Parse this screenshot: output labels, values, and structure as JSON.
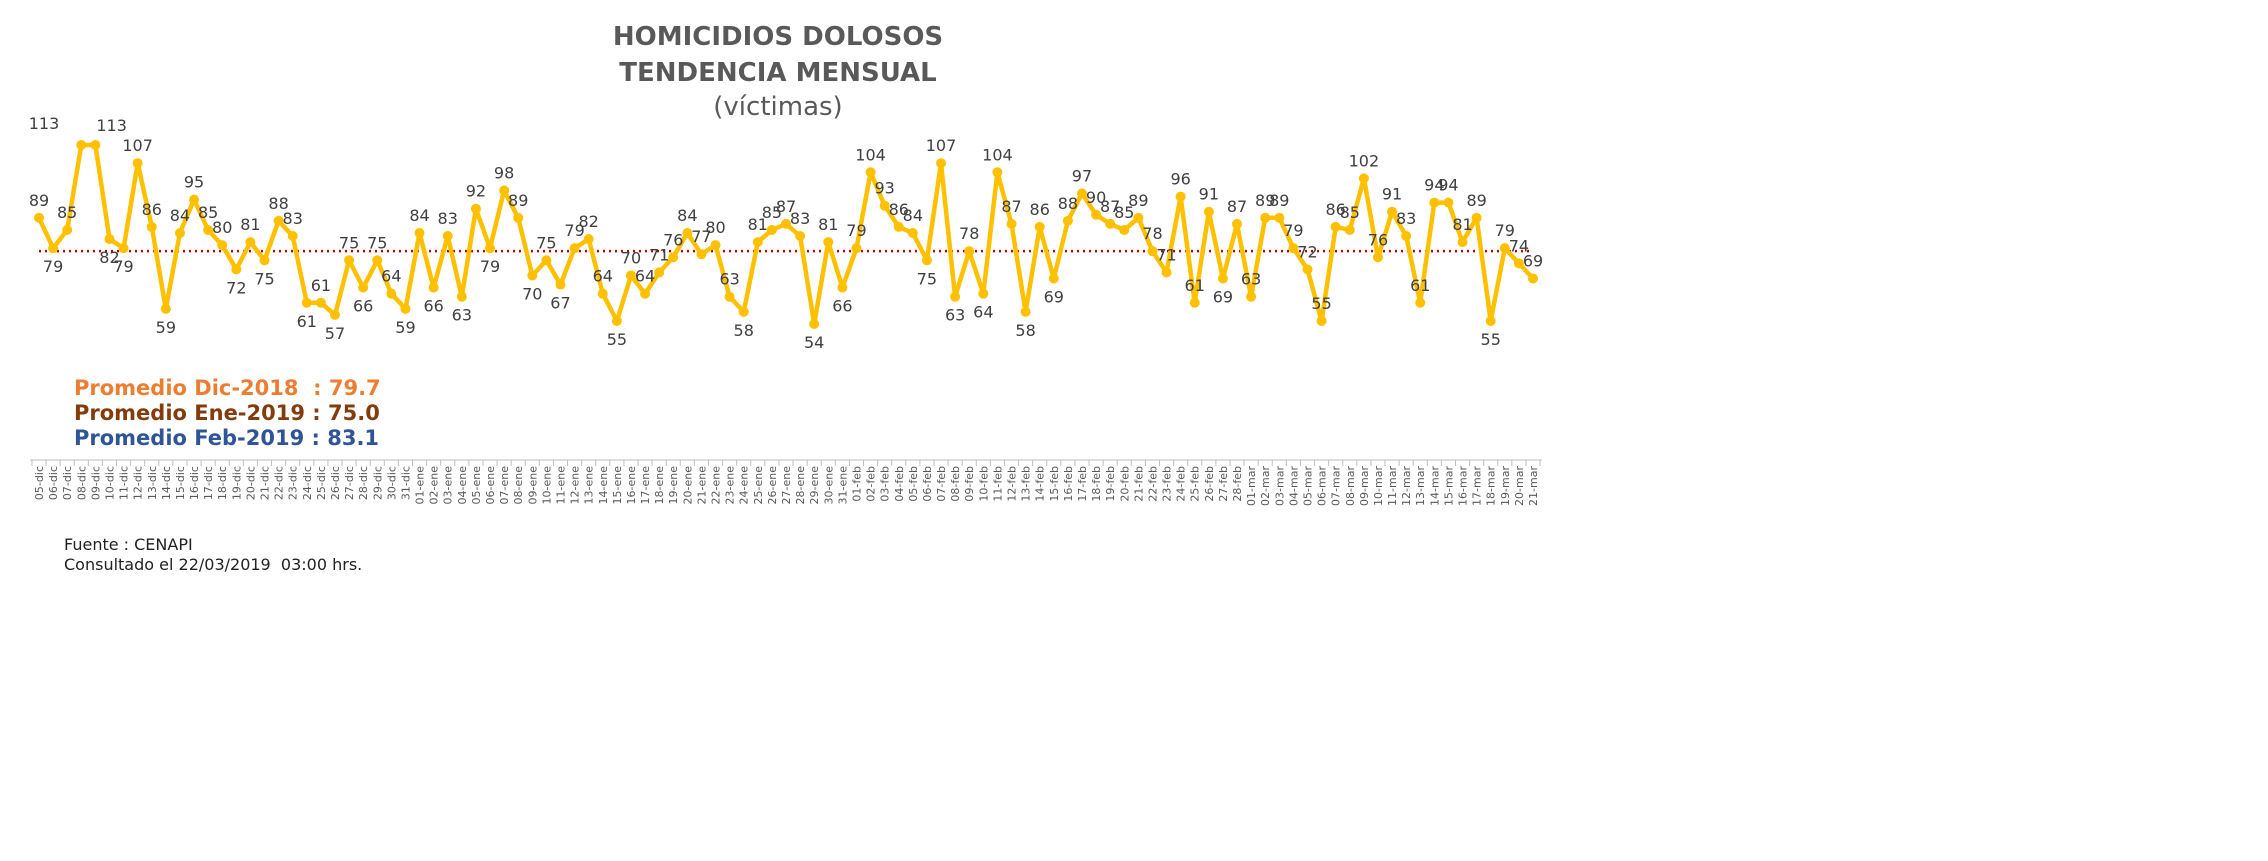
{
  "title_line1": "HOMICIDIOS DOLOSOS",
  "title_line2": "TENDENCIA MENSUAL",
  "title_line3": "(víctimas)",
  "averages": [
    {
      "label": "Promedio Dic-2018  : 79.7",
      "color": "#ED7D31"
    },
    {
      "label": "Promedio Ene-2019 : 75.0",
      "color": "#843C0C"
    },
    {
      "label": "Promedio Feb-2019 : 83.1",
      "color": "#2F5597"
    }
  ],
  "source_line1": "Fuente : CENAPI",
  "source_line2": "Consultado el 22/03/2019  03:00 hrs.",
  "colors": {
    "line": "#FFC000",
    "reference": "#C00000",
    "text": "#404040"
  },
  "chart_data": {
    "type": "line",
    "title": "HOMICIDIOS DOLOSOS TENDENCIA MENSUAL",
    "subtitle": "(víctimas)",
    "categories": [
      "05-dic",
      "06-dic",
      "07-dic",
      "08-dic",
      "09-dic",
      "10-dic",
      "11-dic",
      "12-dic",
      "13-dic",
      "14-dic",
      "15-dic",
      "16-dic",
      "17-dic",
      "18-dic",
      "19-dic",
      "20-dic",
      "21-dic",
      "22-dic",
      "23-dic",
      "24-dic",
      "25-dic",
      "26-dic",
      "27-dic",
      "28-dic",
      "29-dic",
      "30-dic",
      "31-dic",
      "01-ene",
      "02-ene",
      "03-ene",
      "04-ene",
      "05-ene",
      "06-ene",
      "07-ene",
      "08-ene",
      "09-ene",
      "10-ene",
      "11-ene",
      "12-ene",
      "13-ene",
      "14-ene",
      "15-ene",
      "16-ene",
      "17-ene",
      "18-ene",
      "19-ene",
      "20-ene",
      "21-ene",
      "22-ene",
      "23-ene",
      "24-ene",
      "25-ene",
      "26-ene",
      "27-ene",
      "28-ene",
      "29-ene",
      "30-ene",
      "31-ene",
      "01-feb",
      "02-feb",
      "03-feb",
      "04-feb",
      "05-feb",
      "06-feb",
      "07-feb",
      "08-feb",
      "09-feb",
      "10-feb",
      "11-feb",
      "12-feb",
      "13-feb",
      "14-feb",
      "15-feb",
      "16-feb",
      "17-feb",
      "18-feb",
      "19-feb",
      "20-feb",
      "21-feb",
      "22-feb",
      "23-feb",
      "24-feb",
      "25-feb",
      "26-feb",
      "27-feb",
      "28-feb",
      "01-mar",
      "02-mar",
      "03-mar",
      "04-mar",
      "05-mar",
      "06-mar",
      "07-mar",
      "08-mar",
      "09-mar",
      "10-mar",
      "11-mar",
      "12-mar",
      "13-mar",
      "14-mar",
      "15-mar",
      "16-mar",
      "17-mar",
      "18-mar",
      "19-mar",
      "20-mar",
      "21-mar"
    ],
    "values": [
      89,
      79,
      85,
      113,
      113,
      82,
      79,
      107,
      86,
      59,
      84,
      95,
      85,
      80,
      72,
      81,
      75,
      88,
      83,
      61,
      61,
      57,
      75,
      66,
      75,
      64,
      59,
      84,
      66,
      83,
      63,
      92,
      79,
      98,
      89,
      70,
      75,
      67,
      79,
      82,
      64,
      55,
      70,
      64,
      71,
      76,
      84,
      77,
      80,
      63,
      58,
      81,
      85,
      87,
      83,
      54,
      81,
      66,
      79,
      104,
      93,
      86,
      84,
      75,
      107,
      63,
      78,
      64,
      104,
      87,
      58,
      86,
      69,
      88,
      97,
      90,
      87,
      85,
      89,
      78,
      71,
      96,
      61,
      91,
      69,
      87,
      63,
      89,
      89,
      79,
      72,
      55,
      86,
      85,
      102,
      76,
      91,
      83,
      61,
      94,
      94,
      81,
      89,
      55,
      79,
      74,
      69
    ],
    "data_labels": [
      "89",
      "79",
      "85",
      "113",
      "113",
      "82",
      "79",
      "107",
      "86",
      "59",
      "84",
      "95",
      "85",
      "80",
      "72",
      "81",
      "75",
      "88",
      "83",
      "61",
      "61",
      "57",
      "75",
      "66",
      "75",
      "64",
      "59",
      "84",
      "66",
      "83",
      "63",
      "92",
      "79",
      "98",
      "89",
      "70",
      "75",
      "67",
      "79",
      "82",
      "64",
      "55",
      "70",
      "64",
      "71",
      "76",
      "84",
      "77",
      "80",
      "63",
      "58",
      "81",
      "85",
      "87",
      "83",
      "54",
      "81",
      "66",
      "79",
      "104",
      "93",
      "86",
      "84",
      "75",
      "107",
      "63",
      "78",
      "64",
      "104",
      "87",
      "58",
      "86",
      "69",
      "88",
      "97",
      "90",
      "87",
      "85",
      "89",
      "78",
      "71",
      "96",
      "61",
      "91",
      "69",
      "87",
      "63",
      "89",
      "89",
      "79",
      "72",
      "55",
      "86",
      "85",
      "102",
      "76",
      "91",
      "83",
      "61",
      "94",
      "94",
      "81",
      "89",
      "55",
      "79",
      "74",
      "69"
    ],
    "label_placement": [
      "above",
      "below",
      "above",
      "left",
      "right",
      "below",
      "below",
      "above",
      "above",
      "below",
      "above",
      "above",
      "above",
      "above",
      "below",
      "above",
      "below",
      "above",
      "above",
      "below",
      "above",
      "below",
      "above",
      "below",
      "above",
      "above",
      "below",
      "above",
      "below",
      "above",
      "below",
      "above",
      "below",
      "above",
      "above",
      "below",
      "above",
      "below",
      "above",
      "above",
      "above",
      "below",
      "above",
      "above",
      "above",
      "above",
      "above",
      "above",
      "above",
      "above",
      "below",
      "above",
      "above",
      "above",
      "above",
      "below",
      "above",
      "below",
      "above",
      "above",
      "above",
      "above",
      "above",
      "below",
      "above",
      "below",
      "above",
      "below",
      "above",
      "above",
      "below",
      "above",
      "below",
      "above",
      "above",
      "above",
      "above",
      "above",
      "above",
      "above",
      "above",
      "above",
      "above",
      "above",
      "below",
      "above",
      "above",
      "above",
      "above",
      "above",
      "above",
      "above",
      "above",
      "above",
      "above",
      "above",
      "above",
      "above",
      "above",
      "above",
      "above",
      "above",
      "above",
      "below",
      "above",
      "above",
      "above"
    ],
    "reference_line": 78,
    "ylim": [
      40,
      120
    ],
    "grid": false,
    "legend": "none",
    "xlabel": "",
    "ylabel": ""
  }
}
